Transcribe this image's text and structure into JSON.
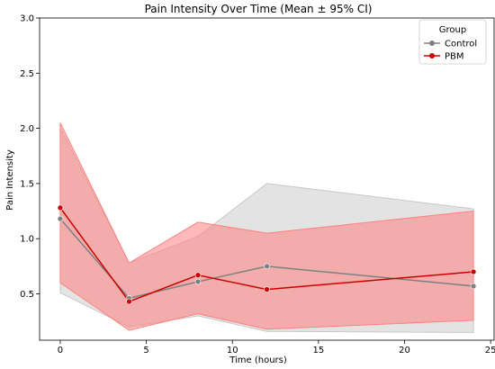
{
  "chart_data": {
    "type": "line",
    "title": "Pain Intensity Over Time (Mean ± 95% CI)",
    "xlabel": "Time (hours)",
    "ylabel": "Pain Intensity",
    "xlim": [
      -1.2,
      25.2
    ],
    "ylim": [
      0.08,
      3.0
    ],
    "xticks": [
      0,
      5,
      10,
      15,
      20,
      25
    ],
    "yticks": [
      0.5,
      1.0,
      1.5,
      2.0,
      2.5,
      3.0
    ],
    "ytick_labels": [
      "0.5",
      "1.0",
      "1.5",
      "2.0",
      "2.5",
      "3.0"
    ],
    "grid": false,
    "legend": {
      "title": "Group",
      "placement": "top-right"
    },
    "series": [
      {
        "name": "Control",
        "color": "#808080",
        "band_color": "#c8c8c8",
        "x": [
          0,
          4,
          8,
          12,
          24
        ],
        "y": [
          1.18,
          0.46,
          0.61,
          0.75,
          0.57
        ],
        "ci_low": [
          0.51,
          0.2,
          0.3,
          0.16,
          0.15
        ],
        "ci_high": [
          2.0,
          0.78,
          1.02,
          1.5,
          1.27
        ]
      },
      {
        "name": "PBM",
        "color": "#cc0000",
        "band_color": "#ff8080",
        "x": [
          0,
          4,
          8,
          12,
          24
        ],
        "y": [
          1.28,
          0.43,
          0.67,
          0.54,
          0.7
        ],
        "ci_low": [
          0.6,
          0.17,
          0.32,
          0.18,
          0.26
        ],
        "ci_high": [
          2.05,
          0.78,
          1.15,
          1.05,
          1.25
        ]
      }
    ]
  }
}
